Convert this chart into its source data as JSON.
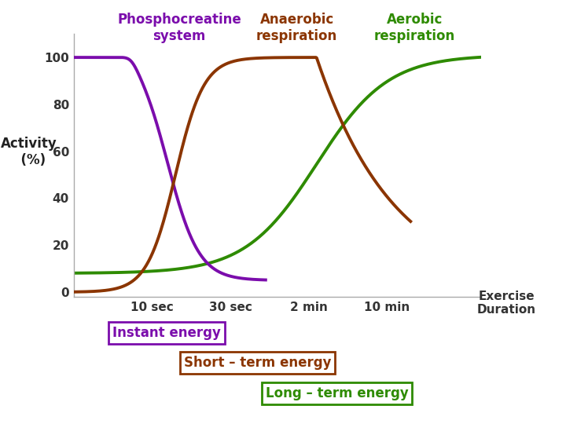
{
  "background_color": "#ffffff",
  "plot_bg_color": "#ffffff",
  "ylabel": "Activity\n(%)",
  "yticks": [
    0,
    20,
    40,
    60,
    80,
    100
  ],
  "xtick_labels": [
    "10 sec",
    "30 sec",
    "2 min",
    "10 min"
  ],
  "xtick_positions": [
    1,
    2,
    3,
    4
  ],
  "xlim": [
    0,
    5.2
  ],
  "ylim": [
    -2,
    110
  ],
  "phosphocreatine_color": "#7B0DAC",
  "anaerobic_color": "#8B3500",
  "aerobic_color": "#2E8B00",
  "box_instant_color": "#7B0DAC",
  "box_short_color": "#8B3500",
  "box_long_color": "#2E8B00",
  "text_instant": "Instant energy",
  "text_short": "Short – term energy",
  "text_long": "Long – term energy",
  "lw": 2.8
}
